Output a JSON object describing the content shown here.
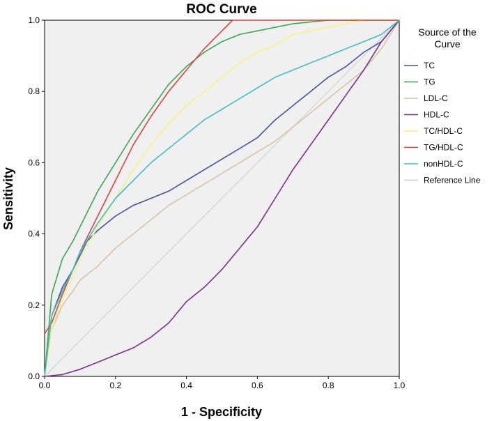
{
  "chart_data": {
    "type": "line",
    "title": "ROC Curve",
    "xlabel": "1 - Specificity",
    "ylabel": "Sensitivity",
    "xlim": [
      0,
      1
    ],
    "ylim": [
      0,
      1
    ],
    "x_ticks": [
      "0.0",
      "0.2",
      "0.4",
      "0.6",
      "0.8",
      "1.0"
    ],
    "y_ticks": [
      "0.0",
      "0.2",
      "0.4",
      "0.6",
      "0.8",
      "1.0"
    ],
    "grid": false,
    "plot_background": "#f0f0f0",
    "legend": {
      "title_lines": [
        "Source of the",
        "Curve"
      ],
      "position": "right"
    },
    "series": [
      {
        "name": "TC",
        "color": "#4250a8",
        "x": [
          0,
          0.02,
          0.05,
          0.08,
          0.1,
          0.12,
          0.15,
          0.2,
          0.25,
          0.3,
          0.35,
          0.4,
          0.45,
          0.5,
          0.55,
          0.6,
          0.65,
          0.7,
          0.75,
          0.8,
          0.85,
          0.9,
          0.95,
          1.0
        ],
        "y": [
          0,
          0.17,
          0.25,
          0.3,
          0.34,
          0.38,
          0.41,
          0.45,
          0.48,
          0.5,
          0.52,
          0.55,
          0.58,
          0.61,
          0.64,
          0.67,
          0.72,
          0.76,
          0.8,
          0.84,
          0.87,
          0.91,
          0.94,
          1.0
        ]
      },
      {
        "name": "TG",
        "color": "#3aa84c",
        "x": [
          0,
          0.02,
          0.05,
          0.08,
          0.1,
          0.12,
          0.15,
          0.2,
          0.25,
          0.3,
          0.35,
          0.4,
          0.45,
          0.5,
          0.55,
          0.6,
          0.65,
          0.7,
          0.8,
          0.9,
          1.0
        ],
        "y": [
          0,
          0.23,
          0.33,
          0.38,
          0.42,
          0.46,
          0.52,
          0.6,
          0.68,
          0.75,
          0.82,
          0.87,
          0.91,
          0.94,
          0.96,
          0.97,
          0.98,
          0.99,
          1.0,
          1.0,
          1.0
        ]
      },
      {
        "name": "LDL-C",
        "color": "#d5c6a0",
        "x": [
          0,
          0.02,
          0.05,
          0.08,
          0.1,
          0.15,
          0.2,
          0.25,
          0.3,
          0.35,
          0.4,
          0.45,
          0.5,
          0.55,
          0.6,
          0.65,
          0.7,
          0.75,
          0.8,
          0.85,
          0.9,
          0.95,
          1.0
        ],
        "y": [
          0,
          0.13,
          0.2,
          0.24,
          0.27,
          0.31,
          0.36,
          0.4,
          0.44,
          0.48,
          0.51,
          0.54,
          0.57,
          0.6,
          0.63,
          0.66,
          0.7,
          0.74,
          0.78,
          0.82,
          0.86,
          0.92,
          1.0
        ]
      },
      {
        "name": "HDL-C",
        "color": "#7c2e8c",
        "x": [
          0,
          0.05,
          0.1,
          0.15,
          0.2,
          0.25,
          0.3,
          0.35,
          0.4,
          0.45,
          0.5,
          0.55,
          0.6,
          0.65,
          0.7,
          0.75,
          0.8,
          0.85,
          0.9,
          0.95,
          1.0
        ],
        "y": [
          0,
          0.005,
          0.02,
          0.04,
          0.06,
          0.08,
          0.11,
          0.15,
          0.21,
          0.25,
          0.3,
          0.36,
          0.42,
          0.5,
          0.58,
          0.65,
          0.72,
          0.79,
          0.86,
          0.94,
          1.0
        ]
      },
      {
        "name": "TC/HDL-C",
        "color": "#f7f07a",
        "x": [
          0,
          0.02,
          0.05,
          0.08,
          0.1,
          0.15,
          0.2,
          0.25,
          0.3,
          0.35,
          0.4,
          0.45,
          0.5,
          0.55,
          0.6,
          0.65,
          0.7,
          0.75,
          0.8,
          0.85,
          0.9,
          1.0
        ],
        "y": [
          0,
          0.13,
          0.22,
          0.28,
          0.33,
          0.42,
          0.5,
          0.58,
          0.65,
          0.71,
          0.76,
          0.8,
          0.84,
          0.88,
          0.91,
          0.93,
          0.96,
          0.97,
          0.98,
          0.99,
          1.0,
          1.0
        ]
      },
      {
        "name": "TG/HDL-C",
        "color": "#e0403c",
        "x": [
          0,
          0.02,
          0.05,
          0.08,
          0.1,
          0.15,
          0.2,
          0.25,
          0.3,
          0.35,
          0.4,
          0.45,
          0.5,
          0.53,
          0.6,
          0.7,
          0.8,
          0.9,
          1.0
        ],
        "y": [
          0.12,
          0.15,
          0.23,
          0.3,
          0.35,
          0.45,
          0.55,
          0.65,
          0.73,
          0.8,
          0.86,
          0.92,
          0.97,
          1.0,
          1.0,
          1.0,
          1.0,
          1.0,
          1.0
        ]
      },
      {
        "name": "nonHDL-C",
        "color": "#3dbfc6",
        "x": [
          0,
          0.02,
          0.05,
          0.08,
          0.1,
          0.15,
          0.2,
          0.25,
          0.3,
          0.35,
          0.4,
          0.45,
          0.5,
          0.55,
          0.6,
          0.65,
          0.7,
          0.75,
          0.8,
          0.85,
          0.9,
          0.95,
          1.0
        ],
        "y": [
          0,
          0.17,
          0.24,
          0.3,
          0.35,
          0.43,
          0.5,
          0.55,
          0.6,
          0.64,
          0.68,
          0.72,
          0.75,
          0.78,
          0.81,
          0.84,
          0.86,
          0.88,
          0.9,
          0.92,
          0.94,
          0.96,
          1.0
        ]
      },
      {
        "name": "Reference Line",
        "color": "#cfcfcf",
        "x": [
          0,
          1
        ],
        "y": [
          0,
          1
        ]
      }
    ]
  }
}
